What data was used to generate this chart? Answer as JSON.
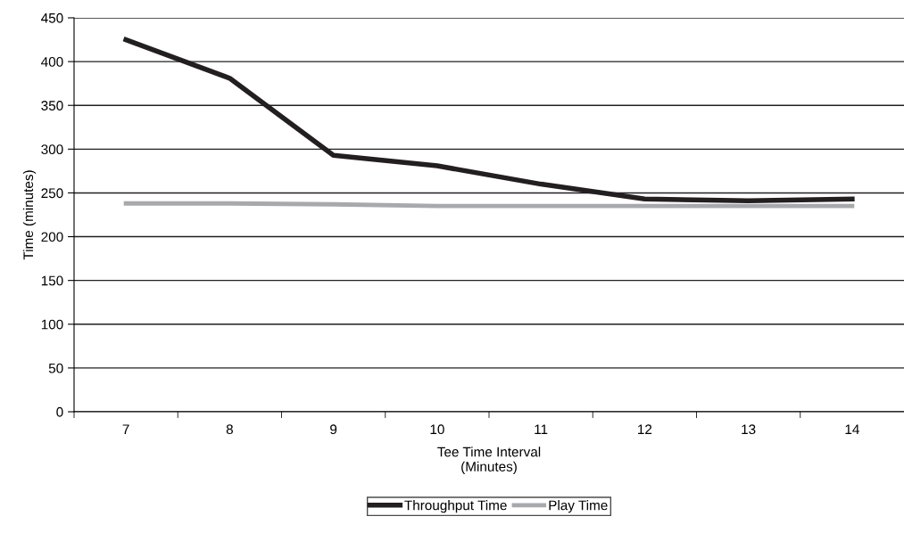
{
  "chart_data": {
    "type": "line",
    "xlabel": "Tee Time Interval\n(Minutes)",
    "ylabel": "Time (minutes)",
    "categories": [
      "7",
      "8",
      "9",
      "10",
      "11",
      "12",
      "13",
      "14"
    ],
    "series": [
      {
        "name": "Throughput Time",
        "color": "#231f20",
        "values": [
          425,
          381,
          293,
          281,
          260,
          243,
          241,
          243
        ]
      },
      {
        "name": "Play Time",
        "color": "#a7a9ac",
        "values": [
          238,
          238,
          237,
          235,
          235,
          235,
          235,
          235
        ]
      }
    ],
    "ylim": [
      0,
      450
    ],
    "yticks": [
      0,
      50,
      100,
      150,
      200,
      250,
      300,
      350,
      400,
      450
    ],
    "grid": "y",
    "legend": "bottom",
    "marker": "none",
    "line_style": "solid"
  }
}
